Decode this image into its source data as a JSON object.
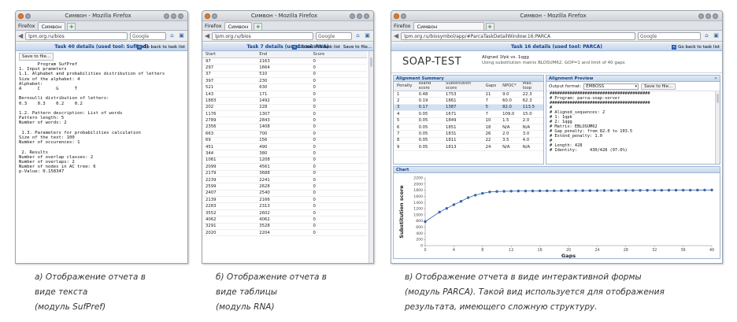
{
  "browser": {
    "window_title": "Симвон - Mozilla Firefox",
    "ff_menu": "Firefox",
    "tab_label": "Симвон",
    "search_placeholder": "Google"
  },
  "win_a": {
    "url": "lpm.org.ru/bios",
    "task_title": "Task 40 details (used tool: SufPref)",
    "go_back": "Go back to task list",
    "save_button": "Save to file...",
    "report_lines": [
      "       Program SufPref",
      "1. Input prameters",
      "1.1. Alphabet and probabilities distribution of letters",
      "Size of the alphabet: 4",
      "Alphabet:",
      "A      C      G      T",
      "",
      "Bernoulli distribution of letters:",
      "0.3    0.3    0.2    0.2",
      "",
      "1.2. Pattern description: List of words",
      "Pattern length: 5",
      "Number of words: 2",
      "",
      " 1.3. Parameters for probabilities calculation",
      "Size of the text: 100",
      "Number of occurences: 1",
      "",
      " 2. Results",
      "Number of overlap classes: 2",
      "Number of overlaps: 2",
      "Number of nodes in AC tree: 6",
      "p-Value: 0.158347"
    ]
  },
  "win_b": {
    "url": "lpm.org.ru/bios",
    "task_title": "Task 7 details (used tool: RNA)",
    "go_back": "Go back to task list",
    "save_button": "Save to file...",
    "headers": [
      "Start",
      "End",
      "Score"
    ],
    "rows": [
      [
        "97",
        "2163",
        "0"
      ],
      [
        "297",
        "1664",
        "0"
      ],
      [
        "37",
        "510",
        "0"
      ],
      [
        "397",
        "230",
        "0"
      ],
      [
        "521",
        "630",
        "0"
      ],
      [
        "143",
        "171",
        "0"
      ],
      [
        "1883",
        "1492",
        "0"
      ],
      [
        "202",
        "228",
        "0"
      ],
      [
        "1176",
        "1307",
        "0"
      ],
      [
        "2789",
        "2843",
        "0"
      ],
      [
        "2356",
        "1408",
        "0"
      ],
      [
        "663",
        "700",
        "0"
      ],
      [
        "69",
        "156",
        "0"
      ],
      [
        "451",
        "490",
        "0"
      ],
      [
        "344",
        "380",
        "0"
      ],
      [
        "1061",
        "1208",
        "0"
      ],
      [
        "2099",
        "4561",
        "0"
      ],
      [
        "2179",
        "3688",
        "0"
      ],
      [
        "2239",
        "2241",
        "0"
      ],
      [
        "2599",
        "2628",
        "0"
      ],
      [
        "2407",
        "2540",
        "0"
      ],
      [
        "2139",
        "2166",
        "0"
      ],
      [
        "2283",
        "2313",
        "0"
      ],
      [
        "3552",
        "2602",
        "0"
      ],
      [
        "4062",
        "4062",
        "0"
      ],
      [
        "3291",
        "3528",
        "0"
      ],
      [
        "2020",
        "2204",
        "0"
      ]
    ]
  },
  "win_c": {
    "url": "lpm.org.ru/biosymbol/app/#ParcaTaskDetailWindow:16:PARCA",
    "task_title": "Task 16 details (used tool: PARCA)",
    "go_back": "Go back to task list",
    "logo": "SOAP-TEST",
    "aligned_line": "Aligned 1fpk vs. 1qgg",
    "matrix_line": "Using substitution matrix BLOSUM62, GOP=1 and limit of 40 gaps",
    "summary_title": "Alignment Summary",
    "preview_title": "Alignment Preview",
    "output_format_label": "Output format:",
    "output_format_value": "EMBOSS",
    "save_button": "Save to file...",
    "summary_headers": [
      "Penalty",
      "Island score",
      "Substitution score",
      "Gaps",
      "NPOC*",
      "Max. loop"
    ],
    "summary_rows": [
      [
        "1",
        "0.48",
        "1753",
        "11",
        "9.0",
        "22.3"
      ],
      [
        "2",
        "0.19",
        "1861",
        "7",
        "60.0",
        "62.3"
      ],
      [
        "3",
        "0.17",
        "1387",
        "5",
        "82.0",
        "113.5"
      ],
      [
        "4",
        "0.05",
        "1671",
        "7",
        "109.0",
        "15.0"
      ],
      [
        "5",
        "0.05",
        "1849",
        "10",
        "1.5",
        "2.0"
      ],
      [
        "6",
        "0.05",
        "1851",
        "18",
        "N/A",
        "N/A"
      ],
      [
        "7",
        "0.05",
        "1831",
        "26",
        "2.0",
        "3.0"
      ],
      [
        "8",
        "0.05",
        "1811",
        "22",
        "3.5",
        "4.0"
      ],
      [
        "9",
        "0.05",
        "1813",
        "24",
        "N/A",
        "N/A"
      ]
    ],
    "preview_lines": [
      "########################################",
      "# Program: parca-soap-server",
      "########################################",
      "#",
      "# Aligned_sequences: 2",
      "# 1: 1qpk",
      "# 2: 1qgg",
      "# Matrix: EBLOSUM62",
      "# Gap_penalty: from 82.0 to 103.5",
      "# Extend_penalty: 1.0",
      "#",
      "# Length: 428",
      "# Identity:     430/428 (97.6%)"
    ],
    "chart_title": "Chart"
  },
  "chart_data": {
    "type": "line",
    "xlabel": "Gaps",
    "ylabel": "Substitution score",
    "xlim": [
      0,
      40
    ],
    "ylim": [
      0,
      2200
    ],
    "xticks": [
      0,
      4,
      8,
      12,
      16,
      20,
      24,
      28,
      32,
      36,
      40
    ],
    "yticks": [
      0,
      200,
      400,
      600,
      800,
      1000,
      1200,
      1400,
      1600,
      1800,
      2000,
      2200
    ],
    "x": [
      0,
      2,
      3,
      4,
      5,
      6,
      7,
      8,
      9,
      10,
      11,
      12,
      13,
      14,
      15,
      16,
      17,
      18,
      19,
      20,
      21,
      22,
      23,
      24,
      25,
      26,
      27,
      28,
      29,
      30,
      31,
      32,
      33,
      34,
      35,
      36,
      37,
      38,
      39,
      40
    ],
    "y": [
      780,
      1090,
      1210,
      1330,
      1440,
      1560,
      1640,
      1700,
      1745,
      1760,
      1765,
      1770,
      1775,
      1775,
      1778,
      1780,
      1782,
      1783,
      1785,
      1786,
      1787,
      1788,
      1789,
      1790,
      1791,
      1792,
      1793,
      1794,
      1795,
      1796,
      1797,
      1798,
      1799,
      1800,
      1801,
      1802,
      1803,
      1805,
      1806,
      1808
    ],
    "series_color": "#3a65a8"
  },
  "captions": {
    "a": [
      "а) Отображение отчета в",
      "виде текста",
      "(модуль SufPref)"
    ],
    "b": [
      "б) Отображение отчета в",
      "виде таблицы",
      "(модуль RNA)"
    ],
    "c": [
      "в) Отображение отчета в виде интерактивной формы",
      "(модуль PARCA). Такой вид используется для отображения",
      "результата, имеющего сложную структуру."
    ]
  }
}
